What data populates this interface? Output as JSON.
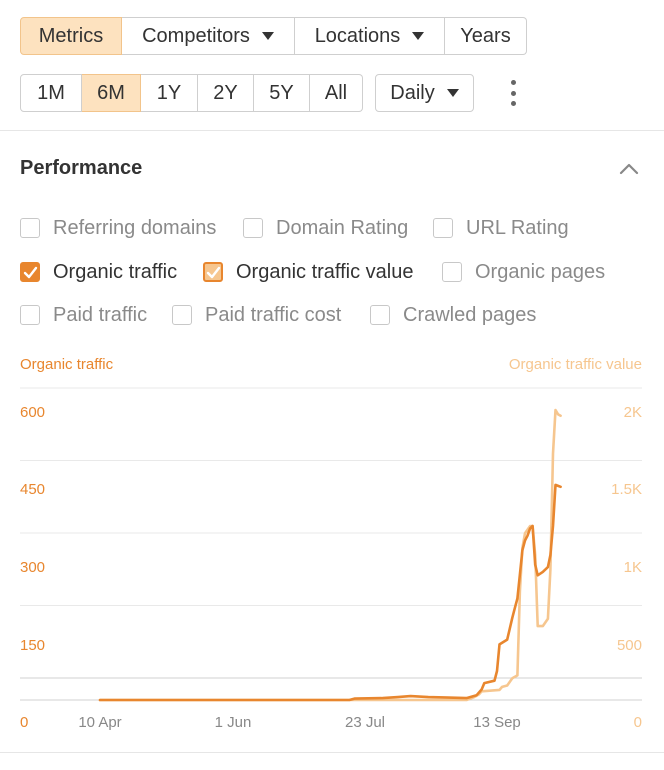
{
  "toolbar": {
    "tabs": [
      {
        "label": "Metrics",
        "active": true,
        "dropdown": false
      },
      {
        "label": "Competitors",
        "active": false,
        "dropdown": true
      },
      {
        "label": "Locations",
        "active": false,
        "dropdown": true
      },
      {
        "label": "Years",
        "active": false,
        "dropdown": false
      }
    ],
    "ranges": [
      {
        "label": "1M",
        "active": false
      },
      {
        "label": "6M",
        "active": true
      },
      {
        "label": "1Y",
        "active": false
      },
      {
        "label": "2Y",
        "active": false
      },
      {
        "label": "5Y",
        "active": false
      },
      {
        "label": "All",
        "active": false
      }
    ],
    "interval": {
      "label": "Daily",
      "icon": "caret-down-icon"
    },
    "more_icon": "kebab-menu-icon"
  },
  "performance": {
    "title": "Performance",
    "collapse_icon": "chevron-up-icon",
    "options": [
      {
        "label": "Referring domains",
        "checked": false
      },
      {
        "label": "Domain Rating",
        "checked": false
      },
      {
        "label": "URL Rating",
        "checked": false
      },
      {
        "label": "Organic traffic",
        "checked": true,
        "color": "#e8862e"
      },
      {
        "label": "Organic traffic value",
        "checked": true,
        "color": "#f6c68f"
      },
      {
        "label": "Organic pages",
        "checked": false
      },
      {
        "label": "Paid traffic",
        "checked": false
      },
      {
        "label": "Paid traffic cost",
        "checked": false
      },
      {
        "label": "Crawled pages",
        "checked": false
      }
    ]
  },
  "chart_data": {
    "type": "line",
    "ylabel": "Organic traffic",
    "y2label": "Organic traffic value",
    "ylim": [
      0,
      600
    ],
    "y2lim": [
      0,
      2000
    ],
    "yticks": [
      "0",
      "150",
      "300",
      "450",
      "600"
    ],
    "y2ticks": [
      "0",
      "500",
      "1K",
      "1.5K",
      "2K"
    ],
    "xticks": [
      "10 Apr",
      "1 Jun",
      "23 Jul",
      "13 Sep"
    ],
    "xlim": [
      "2023-04-10",
      "2023-10-06"
    ],
    "grid": true,
    "series": [
      {
        "name": "Organic traffic",
        "axis": "left",
        "color": "#e8862e",
        "points": [
          [
            "2023-04-10",
            0
          ],
          [
            "2023-06-01",
            0
          ],
          [
            "2023-07-17",
            0
          ],
          [
            "2023-07-19",
            3
          ],
          [
            "2023-07-30",
            4
          ],
          [
            "2023-08-05",
            6
          ],
          [
            "2023-08-10",
            8
          ],
          [
            "2023-08-17",
            6
          ],
          [
            "2023-08-25",
            5
          ],
          [
            "2023-09-01",
            4
          ],
          [
            "2023-09-05",
            10
          ],
          [
            "2023-09-07",
            22
          ],
          [
            "2023-09-08",
            35
          ],
          [
            "2023-09-12",
            40
          ],
          [
            "2023-09-13",
            60
          ],
          [
            "2023-09-14",
            115
          ],
          [
            "2023-09-17",
            125
          ],
          [
            "2023-09-19",
            170
          ],
          [
            "2023-09-20",
            190
          ],
          [
            "2023-09-21",
            210
          ],
          [
            "2023-09-23",
            310
          ],
          [
            "2023-09-24",
            330
          ],
          [
            "2023-09-25",
            340
          ],
          [
            "2023-09-26",
            355
          ],
          [
            "2023-09-27",
            360
          ],
          [
            "2023-09-28",
            280
          ],
          [
            "2023-09-29",
            258
          ],
          [
            "2023-10-01",
            265
          ],
          [
            "2023-10-03",
            275
          ],
          [
            "2023-10-04",
            300
          ],
          [
            "2023-10-05",
            360
          ],
          [
            "2023-10-06",
            445
          ],
          [
            "2023-10-07",
            443
          ],
          [
            "2023-10-08",
            441
          ]
        ]
      },
      {
        "name": "Organic traffic value",
        "axis": "right",
        "color": "#f6c68f",
        "points": [
          [
            "2023-04-10",
            0
          ],
          [
            "2023-09-01",
            0
          ],
          [
            "2023-09-04",
            20
          ],
          [
            "2023-09-06",
            40
          ],
          [
            "2023-09-07",
            60
          ],
          [
            "2023-09-14",
            70
          ],
          [
            "2023-09-15",
            90
          ],
          [
            "2023-09-17",
            100
          ],
          [
            "2023-09-19",
            150
          ],
          [
            "2023-09-21",
            170
          ],
          [
            "2023-09-22",
            750
          ],
          [
            "2023-09-23",
            1050
          ],
          [
            "2023-09-24",
            1150
          ],
          [
            "2023-09-26",
            1200
          ],
          [
            "2023-09-27",
            1200
          ],
          [
            "2023-09-28",
            1000
          ],
          [
            "2023-09-29",
            510
          ],
          [
            "2023-10-01",
            510
          ],
          [
            "2023-10-03",
            560
          ],
          [
            "2023-10-04",
            900
          ],
          [
            "2023-10-05",
            1700
          ],
          [
            "2023-10-06",
            2000
          ],
          [
            "2023-10-07",
            1970
          ],
          [
            "2023-10-08",
            1960
          ]
        ]
      }
    ]
  }
}
